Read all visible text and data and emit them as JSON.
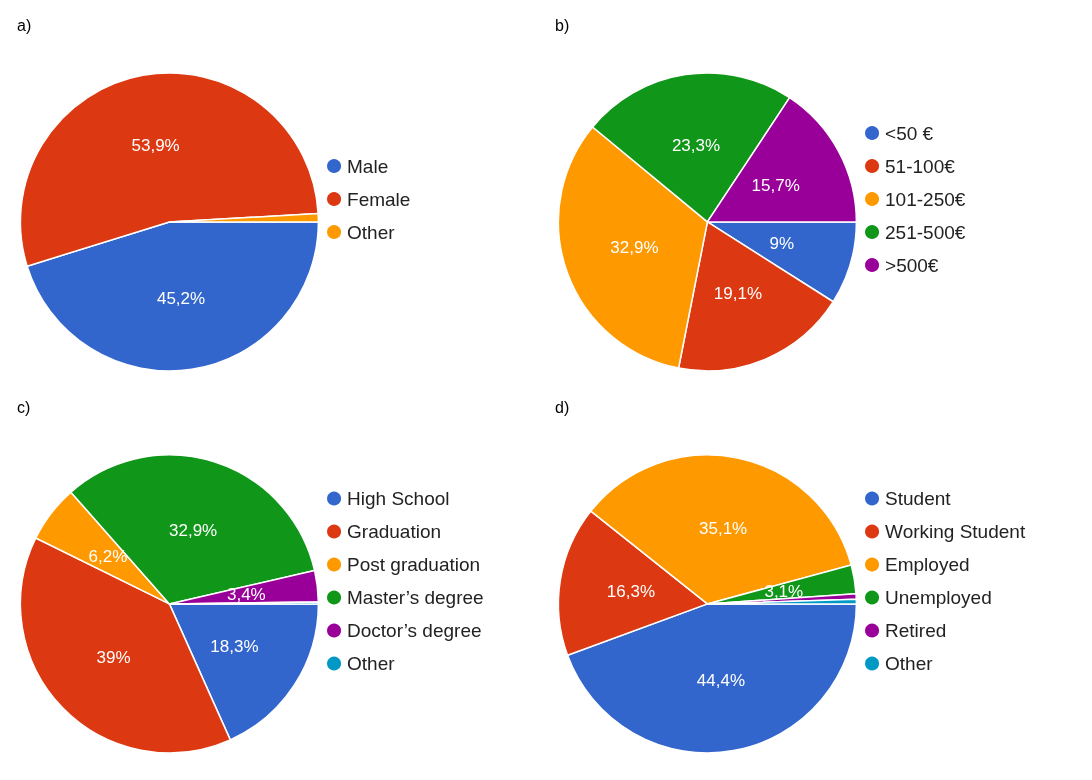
{
  "chart_data": [
    {
      "type": "pie",
      "title": "a)",
      "categories": [
        "Male",
        "Female",
        "Other"
      ],
      "values": [
        45.2,
        53.9,
        0.9
      ],
      "colors": [
        "#3366cc",
        "#dc3912",
        "#ff9900"
      ],
      "value_labels": [
        "45,2%",
        "53,9%",
        null
      ],
      "legend": "right"
    },
    {
      "type": "pie",
      "title": "b)",
      "categories": [
        "<50 €",
        "51-100€",
        "101-250€",
        "251-500€",
        ">500€"
      ],
      "values": [
        9,
        19.1,
        32.9,
        23.3,
        15.7
      ],
      "colors": [
        "#3366cc",
        "#dc3912",
        "#ff9900",
        "#109618",
        "#990099"
      ],
      "value_labels": [
        "9%",
        "19,1%",
        "32,9%",
        "23,3%",
        "15,7%"
      ],
      "legend": "right"
    },
    {
      "type": "pie",
      "title": "c)",
      "categories": [
        "High School",
        "Graduation",
        "Post graduation",
        "Master’s degree",
        "Doctor’s degree",
        "Other"
      ],
      "values": [
        18.3,
        39,
        6.2,
        32.9,
        3.4,
        0.2
      ],
      "colors": [
        "#3366cc",
        "#dc3912",
        "#ff9900",
        "#109618",
        "#990099",
        "#0099c6"
      ],
      "value_labels": [
        "18,3%",
        "39%",
        "6,2%",
        "32,9%",
        "3,4%",
        null
      ],
      "legend": "right"
    },
    {
      "type": "pie",
      "title": "d)",
      "categories": [
        "Student",
        "Working Student",
        "Employed",
        "Unemployed",
        "Retired",
        "Other"
      ],
      "values": [
        44.4,
        16.3,
        35.1,
        3.1,
        0.6,
        0.5
      ],
      "colors": [
        "#3366cc",
        "#dc3912",
        "#ff9900",
        "#109618",
        "#990099",
        "#0099c6"
      ],
      "value_labels": [
        "44,4%",
        "16,3%",
        "35,1%",
        "3,1%",
        null,
        null
      ],
      "legend": "right"
    }
  ]
}
